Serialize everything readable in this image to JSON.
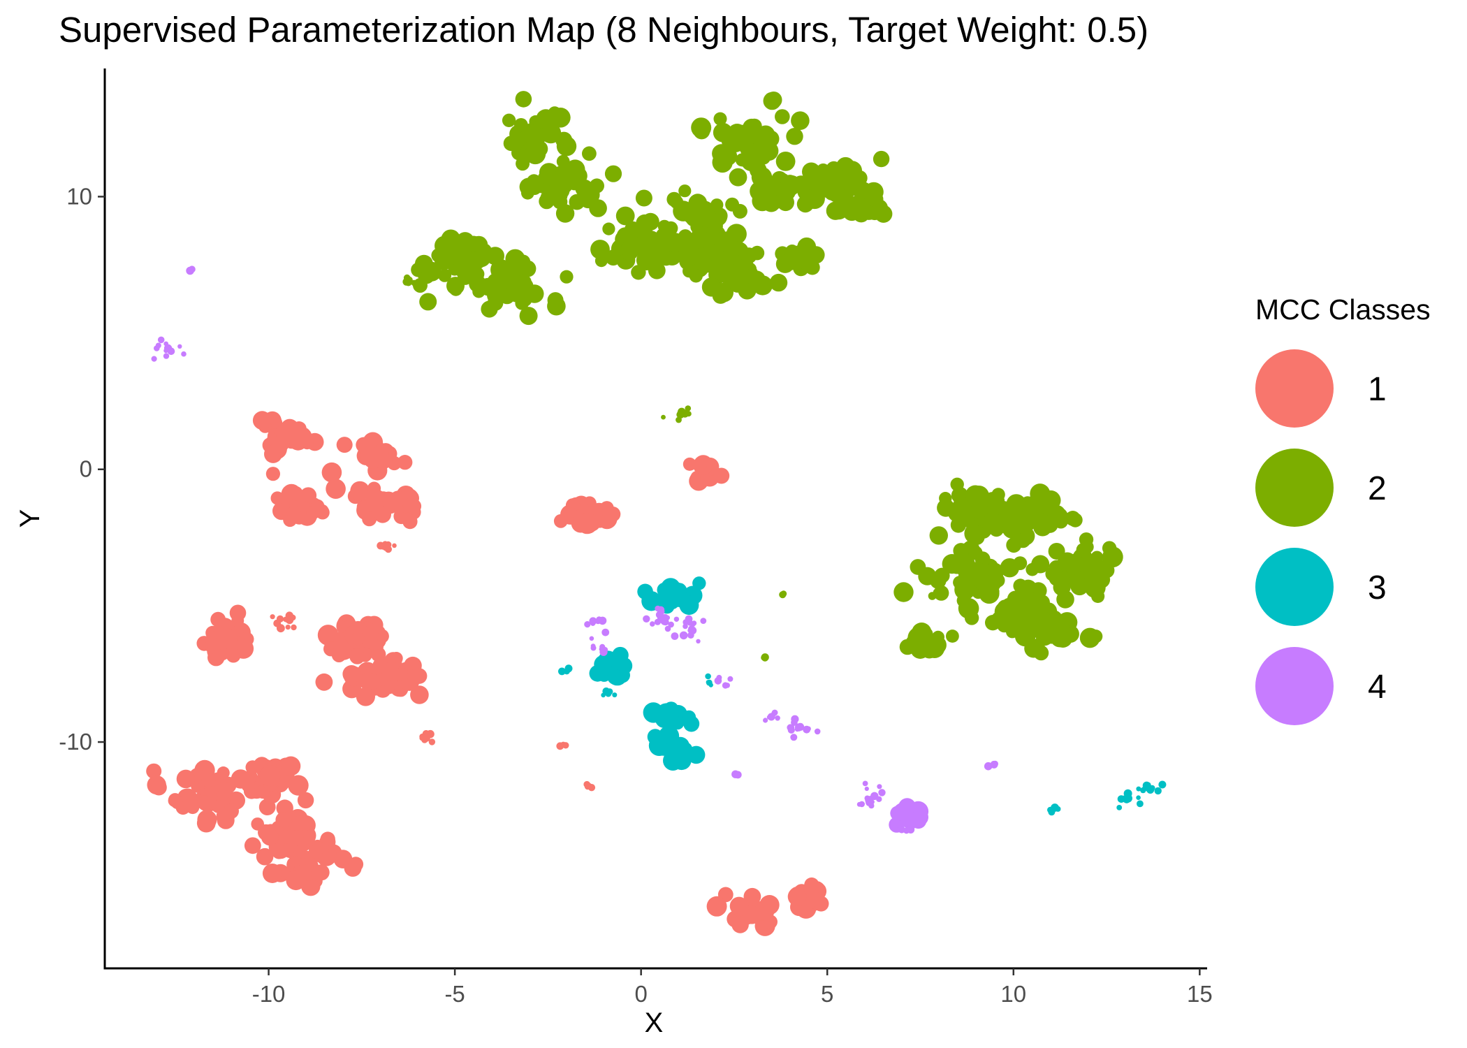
{
  "chart_data": {
    "type": "scatter",
    "title": "Supervised Parameterization Map (8 Neighbours, Target Weight: 0.5)",
    "xlabel": "X",
    "ylabel": "Y",
    "xlim": [
      -14.4,
      15.2
    ],
    "ylim": [
      -18.3,
      14.7
    ],
    "x_ticks": [
      -10,
      -5,
      0,
      5,
      10,
      15
    ],
    "y_ticks": [
      -10,
      0,
      10
    ],
    "grid": false,
    "legend": {
      "title": "MCC Classes",
      "position": "right",
      "entries": [
        "1",
        "2",
        "3",
        "4"
      ]
    },
    "series": [
      {
        "name": "1",
        "color": "#F8766D",
        "clusters": [
          {
            "x": -9.5,
            "y": 1.3,
            "spread": 0.45,
            "n": 30
          },
          {
            "x": -9.2,
            "y": -1.5,
            "spread": 0.6,
            "n": 40
          },
          {
            "x": -7.0,
            "y": 0.5,
            "spread": 0.4,
            "n": 25
          },
          {
            "x": -6.8,
            "y": -1.2,
            "spread": 0.6,
            "n": 40
          },
          {
            "x": -6.9,
            "y": -2.8,
            "spread": 0.2,
            "n": 8
          },
          {
            "x": -1.4,
            "y": -1.6,
            "spread": 0.4,
            "n": 30
          },
          {
            "x": -11.2,
            "y": -6.2,
            "spread": 0.55,
            "n": 40
          },
          {
            "x": -9.5,
            "y": -5.5,
            "spread": 0.3,
            "n": 12
          },
          {
            "x": -7.6,
            "y": -6.2,
            "spread": 0.6,
            "n": 45
          },
          {
            "x": -6.8,
            "y": -7.6,
            "spread": 0.7,
            "n": 50
          },
          {
            "x": -5.8,
            "y": -9.8,
            "spread": 0.2,
            "n": 10
          },
          {
            "x": -11.6,
            "y": -12.0,
            "spread": 0.8,
            "n": 60
          },
          {
            "x": -9.9,
            "y": -11.4,
            "spread": 0.6,
            "n": 45
          },
          {
            "x": -9.4,
            "y": -13.5,
            "spread": 0.7,
            "n": 55
          },
          {
            "x": -9.0,
            "y": -14.7,
            "spread": 0.6,
            "n": 40
          },
          {
            "x": 2.9,
            "y": -16.2,
            "spread": 0.5,
            "n": 35
          },
          {
            "x": 4.5,
            "y": -15.8,
            "spread": 0.35,
            "n": 20
          },
          {
            "x": 1.8,
            "y": -0.1,
            "spread": 0.4,
            "n": 8
          },
          {
            "x": -2.1,
            "y": -10.1,
            "spread": 0.1,
            "n": 3
          },
          {
            "x": -1.4,
            "y": -11.6,
            "spread": 0.1,
            "n": 4
          }
        ]
      },
      {
        "name": "2",
        "color": "#7CAE00",
        "clusters": [
          {
            "x": -2.8,
            "y": 12.3,
            "spread": 0.7,
            "n": 45
          },
          {
            "x": -2.3,
            "y": 10.3,
            "spread": 0.7,
            "n": 45
          },
          {
            "x": -4.8,
            "y": 7.5,
            "spread": 0.8,
            "n": 55
          },
          {
            "x": -3.5,
            "y": 6.8,
            "spread": 0.8,
            "n": 50
          },
          {
            "x": 0.0,
            "y": 8.2,
            "spread": 0.8,
            "n": 55
          },
          {
            "x": 1.5,
            "y": 9.3,
            "spread": 0.7,
            "n": 45
          },
          {
            "x": 1.6,
            "y": 7.8,
            "spread": 0.8,
            "n": 50
          },
          {
            "x": 2.6,
            "y": 7.1,
            "spread": 0.6,
            "n": 40
          },
          {
            "x": 3.0,
            "y": 12.1,
            "spread": 0.8,
            "n": 55
          },
          {
            "x": 3.7,
            "y": 10.2,
            "spread": 0.6,
            "n": 40
          },
          {
            "x": 5.3,
            "y": 10.4,
            "spread": 0.8,
            "n": 55
          },
          {
            "x": 4.3,
            "y": 7.7,
            "spread": 0.4,
            "n": 20
          },
          {
            "x": 6.0,
            "y": 9.5,
            "spread": 0.4,
            "n": 20
          },
          {
            "x": -6.2,
            "y": 6.9,
            "spread": 0.2,
            "n": 8
          },
          {
            "x": 1.1,
            "y": 2.0,
            "spread": 0.25,
            "n": 12
          },
          {
            "x": 9.2,
            "y": -1.8,
            "spread": 0.9,
            "n": 60
          },
          {
            "x": 10.6,
            "y": -1.6,
            "spread": 0.8,
            "n": 55
          },
          {
            "x": 9.0,
            "y": -3.8,
            "spread": 0.8,
            "n": 55
          },
          {
            "x": 11.6,
            "y": -3.6,
            "spread": 0.8,
            "n": 55
          },
          {
            "x": 10.2,
            "y": -5.2,
            "spread": 0.7,
            "n": 50
          },
          {
            "x": 11.0,
            "y": -6.0,
            "spread": 0.6,
            "n": 40
          },
          {
            "x": 7.6,
            "y": -6.4,
            "spread": 0.4,
            "n": 25
          },
          {
            "x": 8.0,
            "y": -4.5,
            "spread": 0.3,
            "n": 12
          },
          {
            "x": 3.8,
            "y": -4.6,
            "spread": 0.1,
            "n": 3
          },
          {
            "x": 3.3,
            "y": -6.9,
            "spread": 0.1,
            "n": 4
          }
        ]
      },
      {
        "name": "3",
        "color": "#00BFC4",
        "clusters": [
          {
            "x": 0.9,
            "y": -4.6,
            "spread": 0.5,
            "n": 25
          },
          {
            "x": -0.8,
            "y": -7.3,
            "spread": 0.4,
            "n": 18
          },
          {
            "x": -0.9,
            "y": -8.2,
            "spread": 0.15,
            "n": 5
          },
          {
            "x": -2.0,
            "y": -7.4,
            "spread": 0.1,
            "n": 3
          },
          {
            "x": 0.7,
            "y": -9.1,
            "spread": 0.35,
            "n": 18
          },
          {
            "x": 0.9,
            "y": -10.2,
            "spread": 0.4,
            "n": 20
          },
          {
            "x": 1.8,
            "y": -7.8,
            "spread": 0.2,
            "n": 5
          },
          {
            "x": 11.1,
            "y": -12.4,
            "spread": 0.1,
            "n": 5
          },
          {
            "x": 13.0,
            "y": -12.1,
            "spread": 0.2,
            "n": 8
          },
          {
            "x": 13.7,
            "y": -11.7,
            "spread": 0.3,
            "n": 12
          }
        ]
      },
      {
        "name": "4",
        "color": "#C77CFF",
        "clusters": [
          {
            "x": -12.8,
            "y": 4.4,
            "spread": 0.25,
            "n": 12
          },
          {
            "x": -12.1,
            "y": 7.3,
            "spread": 0.1,
            "n": 3
          },
          {
            "x": 0.6,
            "y": -5.5,
            "spread": 0.3,
            "n": 18
          },
          {
            "x": 1.3,
            "y": -5.8,
            "spread": 0.3,
            "n": 15
          },
          {
            "x": -1.2,
            "y": -5.6,
            "spread": 0.3,
            "n": 8
          },
          {
            "x": -1.0,
            "y": -6.6,
            "spread": 0.2,
            "n": 6
          },
          {
            "x": 2.1,
            "y": -7.8,
            "spread": 0.2,
            "n": 5
          },
          {
            "x": 3.7,
            "y": -9.0,
            "spread": 0.2,
            "n": 6
          },
          {
            "x": 4.2,
            "y": -9.5,
            "spread": 0.3,
            "n": 12
          },
          {
            "x": 2.6,
            "y": -11.2,
            "spread": 0.1,
            "n": 4
          },
          {
            "x": 6.1,
            "y": -12.1,
            "spread": 0.3,
            "n": 15
          },
          {
            "x": 7.2,
            "y": -12.7,
            "spread": 0.4,
            "n": 22
          },
          {
            "x": 7.0,
            "y": -13.2,
            "spread": 0.2,
            "n": 8
          },
          {
            "x": 9.5,
            "y": -10.8,
            "spread": 0.1,
            "n": 3
          }
        ]
      }
    ]
  }
}
